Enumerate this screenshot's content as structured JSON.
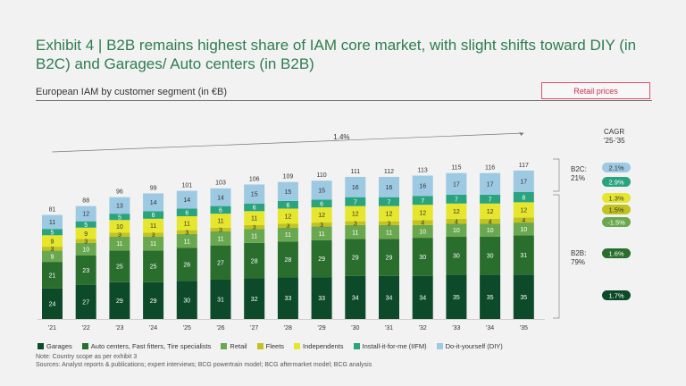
{
  "header": {
    "title": "Exhibit 4 | B2B remains highest share of IAM core market, with slight shifts toward DIY (in B2C) and Garages/ Auto centers (in B2B)",
    "subtitle": "European IAM by customer segment (in €B)",
    "retail_label": "Retail prices"
  },
  "legend": [
    {
      "label": "Garages",
      "color": "#0d4a2a"
    },
    {
      "label": "Auto centers, Fast fitters, Tire specialists",
      "color": "#2a6e2d"
    },
    {
      "label": "Retail",
      "color": "#6aa84f"
    },
    {
      "label": "Fleets",
      "color": "#c3c31f"
    },
    {
      "label": "Independents",
      "color": "#e6e62e"
    },
    {
      "label": "Install-it-for-me (IIFM)",
      "color": "#2aa37f"
    },
    {
      "label": "Do-it-yourself (DIY)",
      "color": "#9dc9e2"
    }
  ],
  "footer": {
    "note": "Note: Country scope as per exhibit 3",
    "sources": "Sources: Analyst reports & publications; expert interviews; BCG powertrain model; BCG aftermarket model; BCG analysis"
  },
  "chart_data": {
    "type": "bar",
    "stacked": true,
    "categories": [
      "'21",
      "'22",
      "'23",
      "'24",
      "'25",
      "'26",
      "'27",
      "'28",
      "'29",
      "'30",
      "'31",
      "'32",
      "'33",
      "'34",
      "'35"
    ],
    "totals": [
      81,
      88,
      96,
      99,
      101,
      103,
      106,
      109,
      110,
      111,
      112,
      113,
      115,
      116,
      117
    ],
    "series": [
      {
        "name": "Garages",
        "color": "#0d4a2a",
        "text_color": "#ffffff",
        "values": [
          24,
          27,
          29,
          29,
          30,
          31,
          32,
          33,
          33,
          34,
          34,
          34,
          35,
          35,
          35
        ]
      },
      {
        "name": "Auto centers, Fast fitters, Tire specialists",
        "color": "#2a6e2d",
        "text_color": "#ffffff",
        "values": [
          21,
          23,
          25,
          25,
          26,
          27,
          28,
          28,
          29,
          29,
          29,
          30,
          30,
          30,
          31
        ]
      },
      {
        "name": "Retail",
        "color": "#6aa84f",
        "text_color": "#ffffff",
        "values": [
          9,
          10,
          11,
          11,
          11,
          11,
          11,
          11,
          11,
          11,
          11,
          10,
          10,
          10,
          10
        ]
      },
      {
        "name": "Fleets",
        "color": "#c3c31f",
        "text_color": "#333333",
        "values": [
          3,
          3,
          3,
          3,
          3,
          3,
          3,
          3,
          3,
          3,
          3,
          4,
          4,
          4,
          4
        ]
      },
      {
        "name": "Independents",
        "color": "#e6e62e",
        "text_color": "#333333",
        "values": [
          9,
          9,
          10,
          11,
          11,
          11,
          11,
          12,
          12,
          12,
          12,
          12,
          12,
          12,
          12
        ]
      },
      {
        "name": "Install-it-for-me (IIFM)",
        "color": "#2aa37f",
        "text_color": "#ffffff",
        "values": [
          5,
          5,
          5,
          6,
          6,
          6,
          6,
          6,
          6,
          7,
          7,
          7,
          7,
          7,
          8
        ]
      },
      {
        "name": "Do-it-yourself (DIY)",
        "color": "#9dc9e2",
        "text_color": "#333333",
        "values": [
          11,
          12,
          13,
          14,
          14,
          14,
          15,
          15,
          15,
          16,
          16,
          16,
          17,
          17,
          17
        ]
      }
    ],
    "cagr_overall": "1.4%",
    "cagr_title": "CAGR\n'25-'35",
    "b2c_label": "B2C:\n21%",
    "b2b_label": "B2B:\n79%",
    "cagr_by_series": [
      {
        "label": "2.1%",
        "color": "#9dc9e2",
        "text_color": "#333333"
      },
      {
        "label": "2.9%",
        "color": "#2aa37f",
        "text_color": "#ffffff"
      },
      {
        "label": "1.3%",
        "color": "#e6e62e",
        "text_color": "#333333"
      },
      {
        "label": "1.5%",
        "color": "#c3c31f",
        "text_color": "#333333"
      },
      {
        "label": "-1.5%",
        "color": "#6aa84f",
        "text_color": "#ffffff"
      },
      {
        "label": "1.6%",
        "color": "#2a6e2d",
        "text_color": "#ffffff"
      },
      {
        "label": "1.7%",
        "color": "#0d4a2a",
        "text_color": "#ffffff"
      }
    ]
  }
}
